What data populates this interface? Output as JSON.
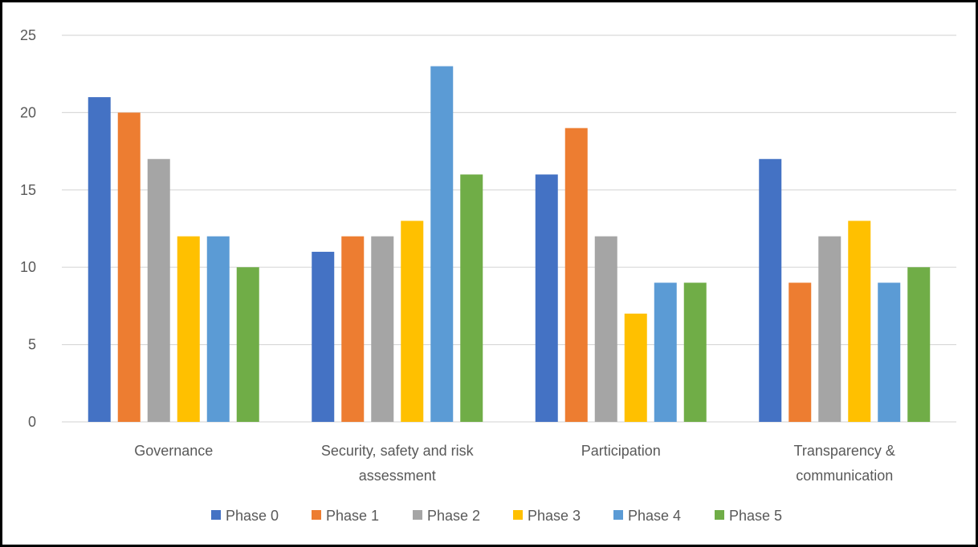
{
  "chart_data": {
    "type": "bar",
    "categories": [
      [
        "Governance"
      ],
      [
        "Security, safety and risk",
        "assessment"
      ],
      [
        "Participation"
      ],
      [
        "Transparency &",
        "communication"
      ]
    ],
    "series": [
      {
        "name": "Phase 0",
        "color": "#4472C4",
        "values": [
          21,
          11,
          16,
          17
        ]
      },
      {
        "name": "Phase 1",
        "color": "#ED7D31",
        "values": [
          20,
          12,
          19,
          9
        ]
      },
      {
        "name": "Phase 2",
        "color": "#A5A5A5",
        "values": [
          17,
          12,
          12,
          12
        ]
      },
      {
        "name": "Phase 3",
        "color": "#FFC000",
        "values": [
          12,
          13,
          7,
          13
        ]
      },
      {
        "name": "Phase 4",
        "color": "#5B9BD5",
        "values": [
          12,
          23,
          9,
          9
        ]
      },
      {
        "name": "Phase 5",
        "color": "#70AD47",
        "values": [
          10,
          16,
          9,
          10
        ]
      }
    ],
    "yticks": [
      0,
      5,
      10,
      15,
      20,
      25
    ],
    "ylim": [
      0,
      25
    ],
    "grid": true,
    "legend": "bottom",
    "title": "",
    "xlabel": "",
    "ylabel": ""
  }
}
